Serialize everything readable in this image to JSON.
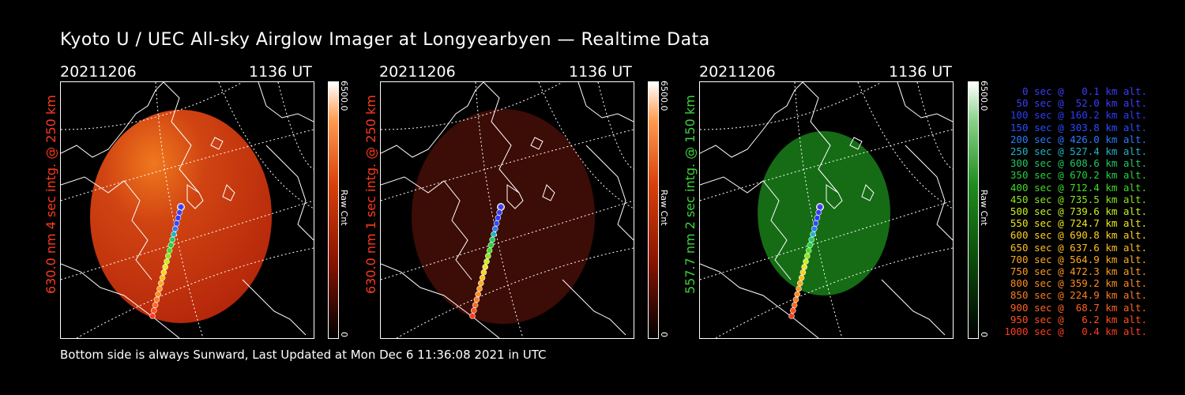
{
  "title": "Kyoto U / UEC All-sky Airglow Imager at Longyearbyen — Realtime Data",
  "panels": [
    {
      "date": "20211206",
      "time": "1136 UT",
      "label": "630.0 nm 4 sec intg. @ 250 km",
      "label_color": "#ff3a1a",
      "colorbar_max": "6500.0",
      "colorbar_unit": "Raw Cnt",
      "colorbar_min": "0",
      "colormap": "red"
    },
    {
      "date": "20211206",
      "time": "1136 UT",
      "label": "630.0 nm 1 sec intg. @ 250 km",
      "label_color": "#ff3a1a",
      "colorbar_max": "6500.0",
      "colorbar_unit": "Raw Cnt",
      "colorbar_min": "0",
      "colormap": "darkred"
    },
    {
      "date": "20211206",
      "time": "1136 UT",
      "label": "557.7 nm 2 sec intg. @ 150 km",
      "label_color": "#3cd23c",
      "colorbar_max": "6500.0",
      "colorbar_unit": "Raw Cnt",
      "colorbar_min": "0",
      "colormap": "green"
    }
  ],
  "legend": [
    {
      "text": "0 sec @   0.1 km alt.",
      "color": "#3c3cff"
    },
    {
      "text": "50 sec @  52.0 km alt.",
      "color": "#3c3cff"
    },
    {
      "text": "100 sec @ 160.2 km alt.",
      "color": "#2a3cff"
    },
    {
      "text": "150 sec @ 303.8 km alt.",
      "color": "#2a4cff"
    },
    {
      "text": "200 sec @ 426.0 km alt.",
      "color": "#2a7aff"
    },
    {
      "text": "250 sec @ 527.4 km alt.",
      "color": "#1fb4c8"
    },
    {
      "text": "300 sec @ 608.6 km alt.",
      "color": "#22c864"
    },
    {
      "text": "350 sec @ 670.2 km alt.",
      "color": "#22d23c"
    },
    {
      "text": "400 sec @ 712.4 km alt.",
      "color": "#44dd22"
    },
    {
      "text": "450 sec @ 735.5 km alt.",
      "color": "#8ce61e"
    },
    {
      "text": "500 sec @ 739.6 km alt.",
      "color": "#c8f01e"
    },
    {
      "text": "550 sec @ 724.7 km alt.",
      "color": "#f0e61e"
    },
    {
      "text": "600 sec @ 690.8 km alt.",
      "color": "#ffd21e"
    },
    {
      "text": "650 sec @ 637.6 km alt.",
      "color": "#ffbe1e"
    },
    {
      "text": "700 sec @ 564.9 km alt.",
      "color": "#ffaa1e"
    },
    {
      "text": "750 sec @ 472.3 km alt.",
      "color": "#ff9a1e"
    },
    {
      "text": "800 sec @ 359.2 km alt.",
      "color": "#ff8c1e"
    },
    {
      "text": "850 sec @ 224.9 km alt.",
      "color": "#ff7a1e"
    },
    {
      "text": "900 sec @  68.7 km alt.",
      "color": "#ff641e"
    },
    {
      "text": "950 sec @   6.2 km alt.",
      "color": "#ff501e"
    },
    {
      "text": "1000 sec @   0.4 km alt.",
      "color": "#ff3c1e"
    }
  ],
  "footer": "Bottom side is always Sunward, Last Updated at Mon Dec  6 11:36:08 2021 in UTC"
}
